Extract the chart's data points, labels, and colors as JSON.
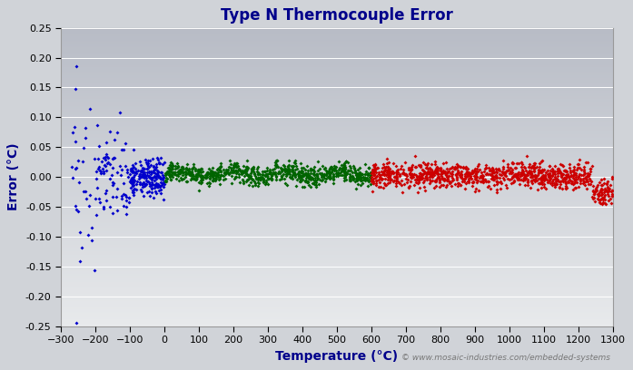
{
  "title": "Type N Thermocouple Error",
  "xlabel": "Temperature (°C)",
  "ylabel": "Error (°C)",
  "xlim": [
    -300,
    1300
  ],
  "ylim": [
    -0.25,
    0.25
  ],
  "xticks": [
    -300,
    -200,
    -100,
    0,
    100,
    200,
    300,
    400,
    500,
    600,
    700,
    800,
    900,
    1000,
    1100,
    1200,
    1300
  ],
  "yticks": [
    -0.25,
    -0.2,
    -0.15,
    -0.1,
    -0.05,
    0.0,
    0.05,
    0.1,
    0.15,
    0.2,
    0.25
  ],
  "blue_color": "#0000CC",
  "green_color": "#006400",
  "red_color": "#CC0000",
  "marker": "D",
  "markersize": 2.0,
  "title_color": "#00008B",
  "axis_label_color": "#00008B",
  "watermark": "© www.mosaic-industries.com/embedded-systems",
  "watermark_color": "#777777",
  "title_fontsize": 12,
  "axis_label_fontsize": 10,
  "tick_fontsize": 8,
  "seed": 42,
  "figsize": [
    6.97,
    4.08
  ],
  "dpi": 100,
  "bg_top": "#b8bcc4",
  "bg_bottom": "#e8eaec",
  "fig_bg": "#d0d3d8"
}
